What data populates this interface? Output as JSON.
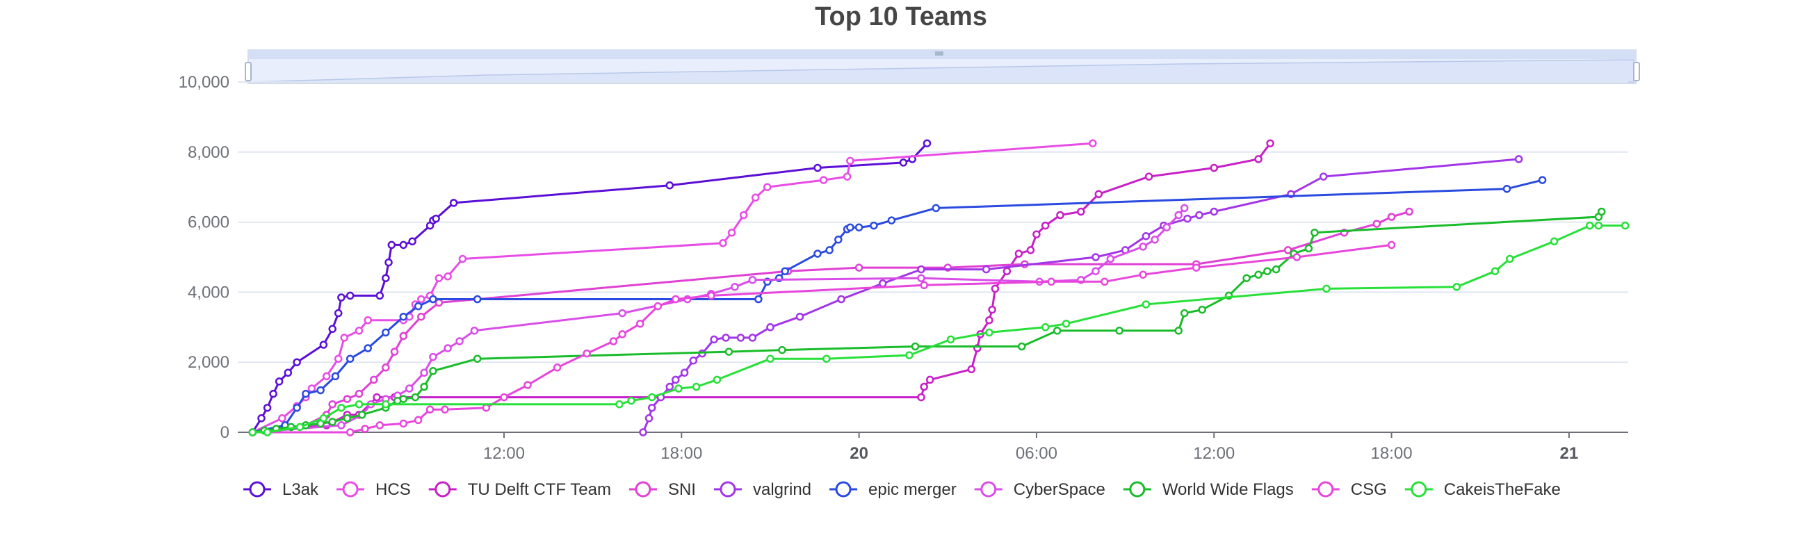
{
  "chart_data": {
    "type": "line",
    "title": "Top 10 Teams",
    "xlabel": "",
    "ylabel": "",
    "x_axis": {
      "type": "time",
      "range_hours": [
        3,
        50
      ],
      "ticks": [
        {
          "h": 12,
          "label": "12:00",
          "bold": false
        },
        {
          "h": 18,
          "label": "18:00",
          "bold": false
        },
        {
          "h": 24,
          "label": "20",
          "bold": true
        },
        {
          "h": 30,
          "label": "06:00",
          "bold": false
        },
        {
          "h": 36,
          "label": "12:00",
          "bold": false
        },
        {
          "h": 42,
          "label": "18:00",
          "bold": false
        },
        {
          "h": 48,
          "label": "21",
          "bold": true
        }
      ]
    },
    "y_axis": {
      "range": [
        0,
        10000
      ],
      "ticks": [
        {
          "v": 0,
          "label": "0"
        },
        {
          "v": 2000,
          "label": "2,000"
        },
        {
          "v": 4000,
          "label": "4,000"
        },
        {
          "v": 6000,
          "label": "6,000"
        },
        {
          "v": 8000,
          "label": "8,000"
        },
        {
          "v": 10000,
          "label": "10,000"
        }
      ]
    },
    "grid": true,
    "legend_position": "bottom-left",
    "data_zoom": true,
    "series": [
      {
        "name": "L3ak",
        "color": "#5b0fd6",
        "points": [
          [
            3.5,
            0
          ],
          [
            3.8,
            400
          ],
          [
            4.0,
            700
          ],
          [
            4.2,
            1100
          ],
          [
            4.4,
            1450
          ],
          [
            4.7,
            1700
          ],
          [
            5.0,
            2000
          ],
          [
            5.9,
            2500
          ],
          [
            6.2,
            2950
          ],
          [
            6.4,
            3400
          ],
          [
            6.5,
            3850
          ],
          [
            6.8,
            3900
          ],
          [
            7.8,
            3900
          ],
          [
            8.0,
            4400
          ],
          [
            8.1,
            4850
          ],
          [
            8.2,
            5350
          ],
          [
            8.6,
            5350
          ],
          [
            8.9,
            5450
          ],
          [
            9.5,
            5900
          ],
          [
            9.6,
            6050
          ],
          [
            9.7,
            6100
          ],
          [
            10.3,
            6550
          ],
          [
            17.6,
            7050
          ],
          [
            22.6,
            7550
          ],
          [
            25.5,
            7700
          ],
          [
            25.8,
            7800
          ],
          [
            26.3,
            8250
          ]
        ]
      },
      {
        "name": "HCS",
        "color": "#e84ce6",
        "points": [
          [
            3.5,
            0
          ],
          [
            4.5,
            400
          ],
          [
            5.0,
            750
          ],
          [
            5.3,
            1000
          ],
          [
            5.5,
            1250
          ],
          [
            6.0,
            1600
          ],
          [
            6.4,
            2100
          ],
          [
            6.6,
            2700
          ],
          [
            7.1,
            2900
          ],
          [
            7.4,
            3200
          ],
          [
            8.6,
            3200
          ],
          [
            8.8,
            3300
          ],
          [
            9.0,
            3650
          ],
          [
            9.2,
            3800
          ],
          [
            9.5,
            3900
          ],
          [
            9.8,
            4400
          ],
          [
            10.1,
            4450
          ],
          [
            10.6,
            4950
          ],
          [
            19.4,
            5400
          ],
          [
            19.7,
            5700
          ],
          [
            20.1,
            6200
          ],
          [
            20.5,
            6700
          ],
          [
            20.9,
            7000
          ],
          [
            22.8,
            7200
          ],
          [
            23.6,
            7300
          ],
          [
            23.7,
            7750
          ],
          [
            31.9,
            8250
          ]
        ]
      },
      {
        "name": "TU Delft CTF Team",
        "color": "#c81fc6",
        "points": [
          [
            3.5,
            0
          ],
          [
            6.0,
            200
          ],
          [
            6.7,
            500
          ],
          [
            7.1,
            500
          ],
          [
            7.7,
            1000
          ],
          [
            8.3,
            1000
          ],
          [
            26.1,
            1000
          ],
          [
            26.2,
            1300
          ],
          [
            26.4,
            1500
          ],
          [
            27.8,
            1800
          ],
          [
            28.0,
            2400
          ],
          [
            28.1,
            2800
          ],
          [
            28.4,
            3200
          ],
          [
            28.5,
            3500
          ],
          [
            28.6,
            4100
          ],
          [
            29.0,
            4600
          ],
          [
            29.4,
            5100
          ],
          [
            29.8,
            5200
          ],
          [
            30.0,
            5650
          ],
          [
            30.3,
            5900
          ],
          [
            30.8,
            6200
          ],
          [
            31.5,
            6300
          ],
          [
            32.1,
            6800
          ],
          [
            33.8,
            7300
          ],
          [
            36.0,
            7550
          ],
          [
            37.5,
            7800
          ],
          [
            37.9,
            8250
          ]
        ]
      },
      {
        "name": "SNI",
        "color": "#e040d4",
        "points": [
          [
            3.5,
            0
          ],
          [
            5.3,
            200
          ],
          [
            6.0,
            500
          ],
          [
            6.2,
            800
          ],
          [
            6.7,
            950
          ],
          [
            7.1,
            1100
          ],
          [
            7.6,
            1500
          ],
          [
            8.0,
            1850
          ],
          [
            8.3,
            2300
          ],
          [
            8.6,
            2750
          ],
          [
            9.2,
            3300
          ],
          [
            9.8,
            3700
          ],
          [
            21.6,
            4600
          ],
          [
            24.0,
            4700
          ],
          [
            27.0,
            4700
          ],
          [
            29.6,
            4800
          ],
          [
            35.4,
            4800
          ],
          [
            38.5,
            5200
          ],
          [
            40.4,
            5700
          ],
          [
            41.5,
            5950
          ],
          [
            42.0,
            6150
          ],
          [
            42.6,
            6300
          ]
        ]
      },
      {
        "name": "valgrind",
        "color": "#a235e8",
        "points": [
          [
            16.7,
            0
          ],
          [
            16.9,
            400
          ],
          [
            17.0,
            700
          ],
          [
            17.3,
            1000
          ],
          [
            17.6,
            1300
          ],
          [
            17.8,
            1500
          ],
          [
            18.1,
            1700
          ],
          [
            18.4,
            2050
          ],
          [
            18.7,
            2250
          ],
          [
            19.1,
            2650
          ],
          [
            19.5,
            2700
          ],
          [
            20.0,
            2700
          ],
          [
            20.4,
            2700
          ],
          [
            21.0,
            3000
          ],
          [
            22.0,
            3300
          ],
          [
            23.4,
            3800
          ],
          [
            24.8,
            4250
          ],
          [
            26.1,
            4650
          ],
          [
            28.3,
            4650
          ],
          [
            32.0,
            5000
          ],
          [
            33.0,
            5200
          ],
          [
            33.7,
            5600
          ],
          [
            34.3,
            5900
          ],
          [
            35.1,
            6100
          ],
          [
            35.5,
            6200
          ],
          [
            36.0,
            6300
          ],
          [
            38.6,
            6800
          ],
          [
            39.7,
            7300
          ],
          [
            46.3,
            7800
          ]
        ]
      },
      {
        "name": "epic merger",
        "color": "#2a4ae0",
        "points": [
          [
            3.5,
            0
          ],
          [
            4.6,
            200
          ],
          [
            5.0,
            700
          ],
          [
            5.3,
            1100
          ],
          [
            5.8,
            1200
          ],
          [
            6.3,
            1600
          ],
          [
            6.8,
            2100
          ],
          [
            7.4,
            2400
          ],
          [
            8.0,
            2850
          ],
          [
            8.6,
            3300
          ],
          [
            9.1,
            3600
          ],
          [
            9.6,
            3800
          ],
          [
            11.1,
            3800
          ],
          [
            20.6,
            3800
          ],
          [
            20.9,
            4300
          ],
          [
            21.3,
            4400
          ],
          [
            21.5,
            4600
          ],
          [
            22.6,
            5100
          ],
          [
            23.0,
            5200
          ],
          [
            23.3,
            5500
          ],
          [
            23.6,
            5800
          ],
          [
            23.7,
            5850
          ],
          [
            24.0,
            5850
          ],
          [
            24.5,
            5900
          ],
          [
            25.1,
            6050
          ],
          [
            26.6,
            6400
          ],
          [
            45.9,
            6950
          ],
          [
            47.1,
            7200
          ]
        ]
      },
      {
        "name": "CyberSpace",
        "color": "#d94de8",
        "points": [
          [
            3.5,
            0
          ],
          [
            6.5,
            200
          ],
          [
            7.2,
            500
          ],
          [
            7.5,
            800
          ],
          [
            8.0,
            950
          ],
          [
            8.4,
            1050
          ],
          [
            8.8,
            1250
          ],
          [
            9.3,
            1700
          ],
          [
            9.6,
            2150
          ],
          [
            10.1,
            2400
          ],
          [
            10.5,
            2600
          ],
          [
            11.0,
            2900
          ],
          [
            16.0,
            3400
          ],
          [
            18.2,
            3800
          ],
          [
            19.0,
            3950
          ],
          [
            19.8,
            4150
          ],
          [
            20.4,
            4350
          ],
          [
            26.1,
            4400
          ],
          [
            30.1,
            4300
          ],
          [
            31.5,
            4350
          ],
          [
            32.0,
            4600
          ],
          [
            32.5,
            4950
          ],
          [
            33.6,
            5300
          ],
          [
            34.0,
            5500
          ],
          [
            34.4,
            5850
          ],
          [
            34.8,
            6200
          ],
          [
            35.0,
            6400
          ]
        ]
      },
      {
        "name": "World Wide Flags",
        "color": "#19bc29",
        "points": [
          [
            3.5,
            0
          ],
          [
            3.9,
            50
          ],
          [
            4.3,
            100
          ],
          [
            4.8,
            150
          ],
          [
            5.3,
            200
          ],
          [
            5.8,
            250
          ],
          [
            6.2,
            300
          ],
          [
            6.7,
            400
          ],
          [
            7.2,
            500
          ],
          [
            8.0,
            700
          ],
          [
            8.4,
            900
          ],
          [
            8.6,
            950
          ],
          [
            9.0,
            1000
          ],
          [
            9.3,
            1300
          ],
          [
            9.6,
            1750
          ],
          [
            11.1,
            2100
          ],
          [
            19.6,
            2300
          ],
          [
            21.4,
            2350
          ],
          [
            25.9,
            2450
          ],
          [
            29.5,
            2450
          ],
          [
            30.7,
            2900
          ],
          [
            32.8,
            2900
          ],
          [
            34.8,
            2900
          ],
          [
            35.0,
            3400
          ],
          [
            35.6,
            3500
          ],
          [
            36.5,
            3900
          ],
          [
            37.1,
            4400
          ],
          [
            37.5,
            4500
          ],
          [
            37.8,
            4600
          ],
          [
            38.1,
            4650
          ],
          [
            38.7,
            5100
          ],
          [
            39.2,
            5250
          ],
          [
            39.4,
            5700
          ],
          [
            49.0,
            6150
          ],
          [
            49.1,
            6300
          ]
        ]
      },
      {
        "name": "CSG",
        "color": "#e845dc",
        "points": [
          [
            3.5,
            0
          ],
          [
            6.8,
            0
          ],
          [
            7.3,
            100
          ],
          [
            7.8,
            200
          ],
          [
            8.6,
            250
          ],
          [
            9.1,
            350
          ],
          [
            9.5,
            650
          ],
          [
            10.0,
            650
          ],
          [
            11.4,
            700
          ],
          [
            12.0,
            1000
          ],
          [
            12.8,
            1350
          ],
          [
            13.8,
            1850
          ],
          [
            14.8,
            2250
          ],
          [
            15.7,
            2600
          ],
          [
            16.0,
            2800
          ],
          [
            16.6,
            3100
          ],
          [
            17.2,
            3600
          ],
          [
            17.8,
            3800
          ],
          [
            19.0,
            3900
          ],
          [
            26.2,
            4200
          ],
          [
            30.5,
            4300
          ],
          [
            32.3,
            4300
          ],
          [
            33.6,
            4500
          ],
          [
            35.4,
            4700
          ],
          [
            38.8,
            5000
          ],
          [
            42.0,
            5350
          ]
        ]
      },
      {
        "name": "CakeisTheFake",
        "color": "#27e038",
        "points": [
          [
            3.5,
            0
          ],
          [
            4.0,
            0
          ],
          [
            5.1,
            150
          ],
          [
            5.9,
            400
          ],
          [
            6.5,
            700
          ],
          [
            7.1,
            800
          ],
          [
            8.0,
            800
          ],
          [
            15.9,
            800
          ],
          [
            16.3,
            900
          ],
          [
            17.0,
            1000
          ],
          [
            17.9,
            1250
          ],
          [
            18.5,
            1300
          ],
          [
            19.2,
            1500
          ],
          [
            21.0,
            2100
          ],
          [
            22.9,
            2100
          ],
          [
            25.7,
            2200
          ],
          [
            27.1,
            2650
          ],
          [
            28.4,
            2850
          ],
          [
            30.3,
            3000
          ],
          [
            31.0,
            3100
          ],
          [
            33.7,
            3650
          ],
          [
            39.8,
            4100
          ],
          [
            44.2,
            4150
          ],
          [
            45.5,
            4600
          ],
          [
            46.0,
            4950
          ],
          [
            47.5,
            5450
          ],
          [
            48.7,
            5900
          ],
          [
            49.0,
            5900
          ],
          [
            49.9,
            5900
          ]
        ]
      }
    ]
  }
}
